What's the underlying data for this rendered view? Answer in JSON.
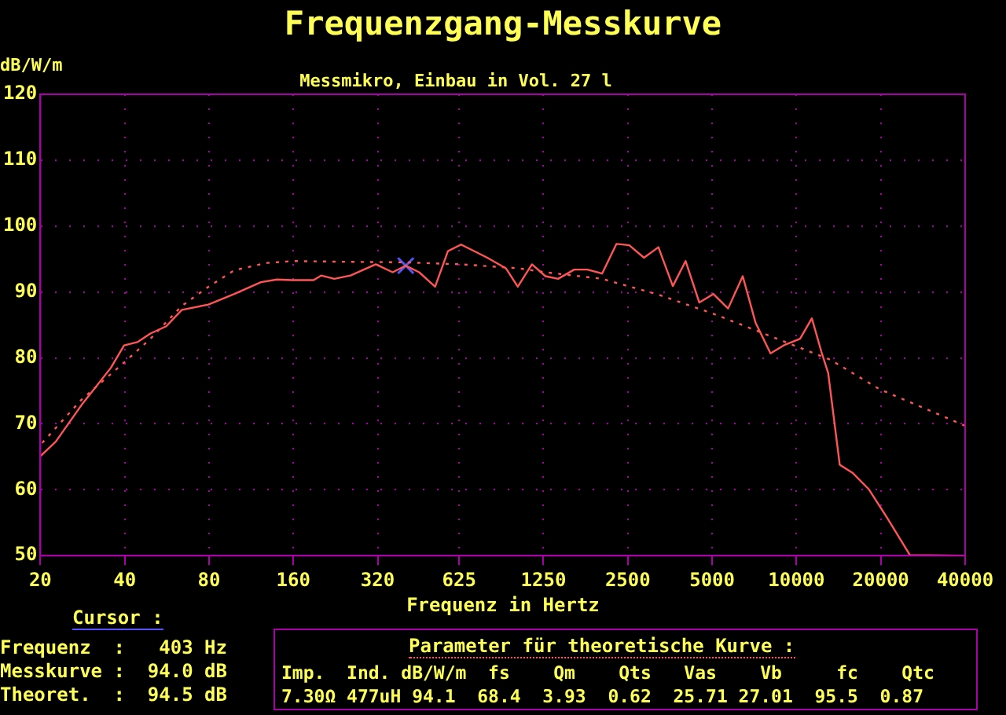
{
  "chart_data": {
    "type": "line",
    "title": "Frequenzgang-Messkurve",
    "subtitle": "Messmikro, Einbau in Vol. 27 l",
    "xlabel": "Frequenz in Hertz",
    "ylabel": "dB/W/m",
    "log": "x",
    "xlim": [
      20,
      40000
    ],
    "xticks": [
      20,
      40,
      80,
      160,
      320,
      625,
      1250,
      2500,
      5000,
      10000,
      20000,
      40000
    ],
    "ylim": [
      50,
      120
    ],
    "yticks": [
      50,
      60,
      70,
      80,
      90,
      100,
      110,
      120
    ],
    "grid": true,
    "legend": false,
    "marker": "none",
    "series": [
      {
        "color": "#ff5555",
        "line_style": "solid",
        "x": [
          20,
          22.7,
          28.1,
          35.7,
          39.8,
          44.4,
          49.4,
          56.3,
          64,
          79.6,
          98.5,
          122.6,
          139.7,
          158,
          189,
          201,
          224,
          256,
          315,
          362,
          403,
          450,
          513,
          570,
          635,
          788,
          918,
          1012,
          1137,
          1270,
          1410,
          1609,
          1795,
          2024,
          2277,
          2530,
          2856,
          3215,
          3620,
          4020,
          4500,
          5050,
          5700,
          6430,
          7150,
          8080,
          9090,
          10300,
          11350,
          12280,
          12980,
          14270,
          15920,
          18100,
          21100,
          25400,
          40000
        ],
        "values": [
          65.1,
          67.3,
          72.9,
          78.5,
          81.9,
          82.4,
          83.7,
          84.8,
          87.3,
          88.1,
          89.7,
          91.5,
          91.9,
          91.8,
          91.8,
          92.5,
          92.0,
          92.5,
          94.2,
          93.0,
          94.0,
          93.0,
          90.8,
          96.2,
          97.2,
          95.2,
          93.6,
          90.8,
          94.2,
          92.4,
          92.0,
          93.4,
          93.4,
          92.8,
          97.3,
          97.1,
          95.2,
          96.8,
          90.9,
          94.7,
          88.4,
          89.7,
          87.5,
          92.4,
          85.3,
          80.7,
          82.0,
          82.9,
          86.0,
          80.9,
          77.7,
          63.8,
          62.5,
          60.1,
          55.7,
          50.1,
          50
        ]
      },
      {
        "color": "#ff5555",
        "line_style": "dotted",
        "x": [
          20.3,
          28.1,
          39.8,
          49.4,
          64,
          79.6,
          98.5,
          128,
          159,
          235,
          403,
          635,
          1020,
          1270,
          2024,
          3215,
          5050,
          8080,
          13250,
          19700,
          31100,
          40000
        ],
        "values": [
          67.1,
          73.7,
          79.3,
          82.9,
          87.9,
          90.8,
          93.3,
          94.4,
          94.7,
          94.6,
          94.5,
          94.2,
          93.6,
          93.0,
          92.0,
          89.6,
          86.7,
          83.3,
          79.7,
          75.3,
          71.7,
          69.7
        ]
      },
      {
        "type": "scatter",
        "color": "#5555ff",
        "marker": "cross",
        "x": [
          403
        ],
        "values": [
          94.0
        ]
      }
    ],
    "annotations": [
      "Cursor :",
      "Frequenz  :   403 Hz",
      "Messkurve :  94.0 dB",
      "Theoret.  :  94.5 dB",
      "Parameter für theoretische Kurve :",
      "Imp.  Ind. dB/W/m  fs    Qm    Qts   Vas    Vb     fc    Qtc",
      "7.30Ω 477uH 94.1  68.4  3.93  0.62  25.71 27.01  95.5  0.87"
    ]
  }
}
